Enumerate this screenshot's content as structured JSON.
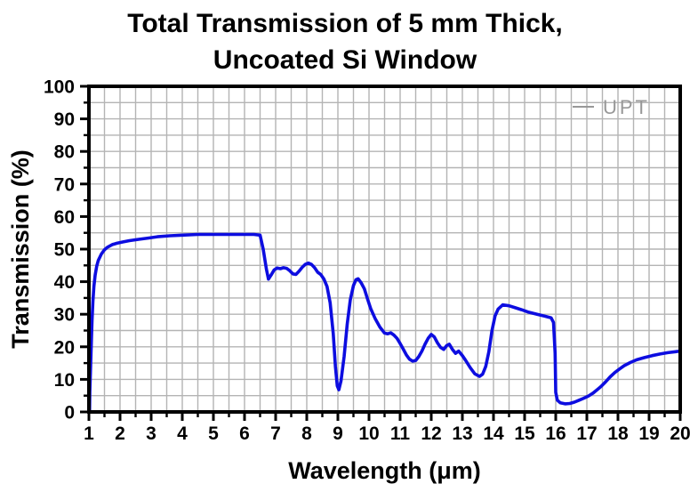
{
  "title": {
    "line1": "Total Transmission of 5 mm Thick,",
    "line2": "Uncoated Si Window"
  },
  "chart_data": {
    "type": "line",
    "title": "Total Transmission of 5 mm Thick, Uncoated Si Window",
    "xlabel": "Wavelength (μm)",
    "ylabel": "Transmission (%)",
    "xlim": [
      1,
      20
    ],
    "ylim": [
      0,
      100
    ],
    "x_major_ticks": [
      1,
      2,
      3,
      4,
      5,
      6,
      7,
      8,
      9,
      10,
      11,
      12,
      13,
      14,
      15,
      16,
      17,
      18,
      19,
      20
    ],
    "x_minor_step": 0.5,
    "y_major_ticks": [
      0,
      10,
      20,
      30,
      40,
      50,
      60,
      70,
      80,
      90,
      100
    ],
    "y_minor_step": 5,
    "grid": true,
    "legend": {
      "label": "UPT",
      "position": "top-right"
    },
    "colors": {
      "line": "#0d0de0",
      "grid": "#b4b4b4",
      "axis": "#000000",
      "legend_text": "#989898",
      "background": "#ffffff"
    },
    "series": [
      {
        "name": "UPT",
        "points": [
          [
            1.02,
            0
          ],
          [
            1.03,
            6
          ],
          [
            1.05,
            13
          ],
          [
            1.08,
            22
          ],
          [
            1.1,
            28
          ],
          [
            1.13,
            34
          ],
          [
            1.16,
            38.5
          ],
          [
            1.2,
            42
          ],
          [
            1.25,
            44.8
          ],
          [
            1.3,
            46.5
          ],
          [
            1.4,
            48.5
          ],
          [
            1.5,
            49.8
          ],
          [
            1.6,
            50.6
          ],
          [
            1.75,
            51.4
          ],
          [
            1.9,
            51.8
          ],
          [
            2.1,
            52.2
          ],
          [
            2.3,
            52.6
          ],
          [
            2.6,
            53.0
          ],
          [
            2.9,
            53.4
          ],
          [
            3.2,
            53.8
          ],
          [
            3.6,
            54.1
          ],
          [
            4.0,
            54.3
          ],
          [
            4.5,
            54.5
          ],
          [
            5.0,
            54.5
          ],
          [
            5.5,
            54.5
          ],
          [
            6.0,
            54.5
          ],
          [
            6.3,
            54.5
          ],
          [
            6.5,
            54.3
          ],
          [
            6.6,
            50.0
          ],
          [
            6.7,
            44.0
          ],
          [
            6.77,
            40.8
          ],
          [
            6.85,
            42.0
          ],
          [
            6.95,
            43.6
          ],
          [
            7.05,
            44.2
          ],
          [
            7.15,
            44.0
          ],
          [
            7.25,
            44.3
          ],
          [
            7.35,
            44.1
          ],
          [
            7.45,
            43.4
          ],
          [
            7.55,
            42.4
          ],
          [
            7.65,
            42.2
          ],
          [
            7.75,
            43.2
          ],
          [
            7.85,
            44.4
          ],
          [
            7.95,
            45.3
          ],
          [
            8.05,
            45.7
          ],
          [
            8.15,
            45.3
          ],
          [
            8.25,
            44.3
          ],
          [
            8.35,
            42.9
          ],
          [
            8.45,
            42.2
          ],
          [
            8.55,
            40.8
          ],
          [
            8.65,
            38.5
          ],
          [
            8.75,
            33.5
          ],
          [
            8.85,
            24.0
          ],
          [
            8.92,
            14.0
          ],
          [
            8.98,
            8.0
          ],
          [
            9.03,
            6.8
          ],
          [
            9.1,
            9.5
          ],
          [
            9.2,
            17.0
          ],
          [
            9.3,
            27.0
          ],
          [
            9.4,
            34.5
          ],
          [
            9.5,
            38.8
          ],
          [
            9.58,
            40.6
          ],
          [
            9.65,
            40.9
          ],
          [
            9.75,
            39.6
          ],
          [
            9.85,
            37.8
          ],
          [
            9.95,
            34.8
          ],
          [
            10.05,
            31.8
          ],
          [
            10.2,
            28.6
          ],
          [
            10.35,
            26.0
          ],
          [
            10.5,
            24.2
          ],
          [
            10.6,
            24.0
          ],
          [
            10.7,
            24.3
          ],
          [
            10.8,
            23.6
          ],
          [
            10.9,
            22.6
          ],
          [
            11.0,
            21.0
          ],
          [
            11.1,
            19.3
          ],
          [
            11.2,
            17.5
          ],
          [
            11.3,
            16.2
          ],
          [
            11.4,
            15.6
          ],
          [
            11.5,
            15.8
          ],
          [
            11.6,
            17.0
          ],
          [
            11.7,
            18.7
          ],
          [
            11.8,
            20.8
          ],
          [
            11.9,
            22.6
          ],
          [
            12.0,
            23.8
          ],
          [
            12.1,
            23.0
          ],
          [
            12.2,
            21.2
          ],
          [
            12.3,
            19.8
          ],
          [
            12.4,
            19.2
          ],
          [
            12.5,
            20.4
          ],
          [
            12.58,
            20.8
          ],
          [
            12.68,
            19.2
          ],
          [
            12.78,
            18.0
          ],
          [
            12.88,
            18.7
          ],
          [
            13.0,
            17.3
          ],
          [
            13.1,
            15.9
          ],
          [
            13.25,
            13.6
          ],
          [
            13.4,
            11.7
          ],
          [
            13.55,
            10.9
          ],
          [
            13.65,
            11.6
          ],
          [
            13.75,
            14.0
          ],
          [
            13.85,
            18.5
          ],
          [
            13.95,
            25.0
          ],
          [
            14.05,
            29.5
          ],
          [
            14.15,
            31.6
          ],
          [
            14.3,
            32.9
          ],
          [
            14.5,
            32.6
          ],
          [
            14.7,
            32.0
          ],
          [
            14.9,
            31.4
          ],
          [
            15.1,
            30.7
          ],
          [
            15.4,
            30.0
          ],
          [
            15.65,
            29.4
          ],
          [
            15.85,
            28.9
          ],
          [
            15.93,
            27.5
          ],
          [
            15.98,
            18.0
          ],
          [
            16.0,
            6.0
          ],
          [
            16.05,
            3.6
          ],
          [
            16.15,
            2.8
          ],
          [
            16.3,
            2.5
          ],
          [
            16.45,
            2.6
          ],
          [
            16.6,
            3.0
          ],
          [
            16.75,
            3.6
          ],
          [
            16.9,
            4.2
          ],
          [
            17.05,
            4.9
          ],
          [
            17.2,
            5.8
          ],
          [
            17.33,
            6.8
          ],
          [
            17.45,
            7.8
          ],
          [
            17.6,
            9.2
          ],
          [
            17.75,
            10.8
          ],
          [
            17.9,
            12.1
          ],
          [
            18.05,
            13.2
          ],
          [
            18.2,
            14.2
          ],
          [
            18.4,
            15.2
          ],
          [
            18.6,
            16.0
          ],
          [
            18.85,
            16.7
          ],
          [
            19.1,
            17.3
          ],
          [
            19.35,
            17.8
          ],
          [
            19.6,
            18.2
          ],
          [
            19.85,
            18.5
          ],
          [
            20.0,
            18.7
          ]
        ]
      }
    ]
  }
}
